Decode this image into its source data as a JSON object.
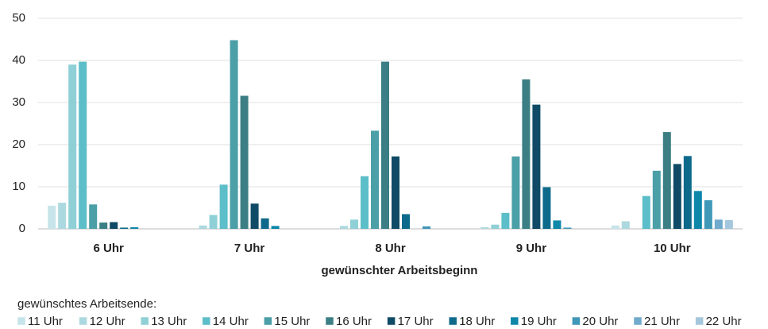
{
  "chart_data": {
    "type": "bar",
    "x_label": "gewünschter Arbeitsbeginn",
    "legend_title": "gewünschtes Arbeitsende:",
    "categories": [
      "6 Uhr",
      "7 Uhr",
      "8 Uhr",
      "9 Uhr",
      "10 Uhr"
    ],
    "series": [
      {
        "name": "11 Uhr",
        "color": "#c6e4e9",
        "values": [
          5.5,
          0,
          0,
          0,
          0.8
        ]
      },
      {
        "name": "12 Uhr",
        "color": "#acd9df",
        "values": [
          6.2,
          0.8,
          0.7,
          0.4,
          1.8
        ]
      },
      {
        "name": "13 Uhr",
        "color": "#8fd0d6",
        "values": [
          39,
          3.3,
          2.2,
          1,
          0
        ]
      },
      {
        "name": "14 Uhr",
        "color": "#5cbec8",
        "values": [
          39.7,
          10.5,
          12.5,
          3.8,
          7.8
        ]
      },
      {
        "name": "15 Uhr",
        "color": "#4b9fa7",
        "values": [
          5.8,
          44.8,
          23.3,
          17.2,
          13.8
        ]
      },
      {
        "name": "16 Uhr",
        "color": "#3b7f84",
        "values": [
          1.5,
          31.6,
          39.7,
          35.5,
          23
        ]
      },
      {
        "name": "17 Uhr",
        "color": "#0f4a66",
        "values": [
          1.6,
          6,
          17.2,
          29.5,
          15.4
        ]
      },
      {
        "name": "18 Uhr",
        "color": "#0e6a8b",
        "values": [
          0.3,
          2.5,
          3.5,
          9.9,
          17.3
        ]
      },
      {
        "name": "19 Uhr",
        "color": "#0e87a9",
        "values": [
          0.4,
          0.7,
          0,
          2,
          9
        ]
      },
      {
        "name": "20 Uhr",
        "color": "#3f98b8",
        "values": [
          0,
          0,
          0.6,
          0.3,
          6.8
        ]
      },
      {
        "name": "21 Uhr",
        "color": "#70aacd",
        "values": [
          0,
          0,
          0,
          0,
          2.2
        ]
      },
      {
        "name": "22 Uhr",
        "color": "#a4c7dd",
        "values": [
          0,
          0,
          0,
          0,
          2.1
        ]
      }
    ],
    "ylim": [
      0,
      50
    ],
    "yticks": [
      0,
      10,
      20,
      30,
      40,
      50
    ],
    "grid": true
  }
}
